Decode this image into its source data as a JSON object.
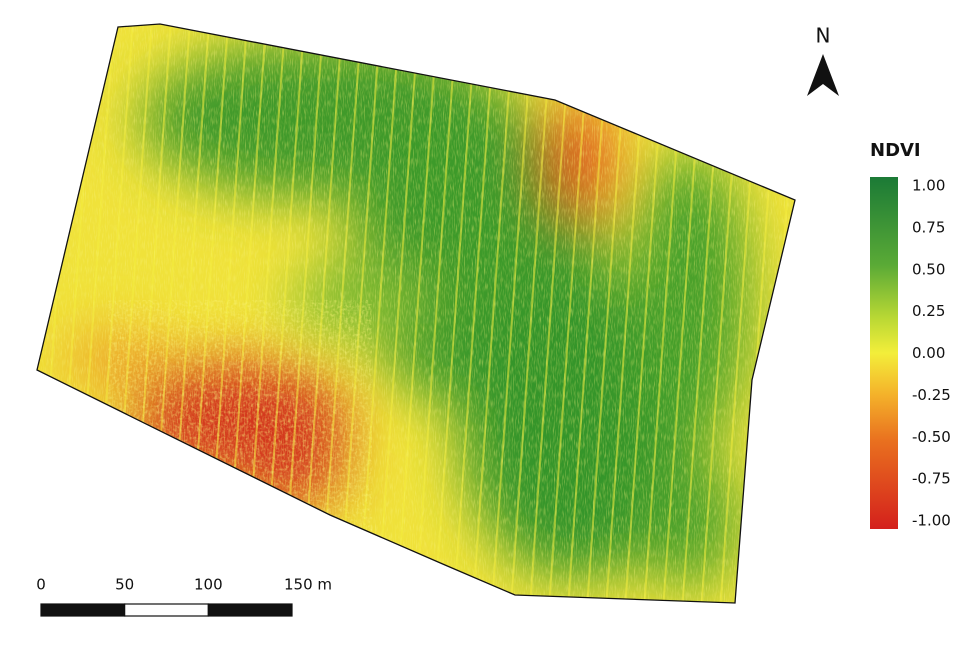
{
  "north_arrow": {
    "label": "N"
  },
  "legend": {
    "title": "NDVI",
    "range": [
      -1,
      1
    ],
    "ticks": [
      {
        "value": 1,
        "label": "1.00"
      },
      {
        "value": 0.75,
        "label": "0.75"
      },
      {
        "value": 0.5,
        "label": "0.50"
      },
      {
        "value": 0.25,
        "label": "0.25"
      },
      {
        "value": 0,
        "label": "0.00"
      },
      {
        "value": -0.25,
        "label": "-0.25"
      },
      {
        "value": -0.5,
        "label": "-0.50"
      },
      {
        "value": -0.75,
        "label": "-0.75"
      },
      {
        "value": -1,
        "label": "-1.00"
      }
    ]
  },
  "scale_bar": {
    "ticks": [
      0,
      50,
      100,
      {
        "value": 150,
        "label": "150 m"
      }
    ]
  }
}
